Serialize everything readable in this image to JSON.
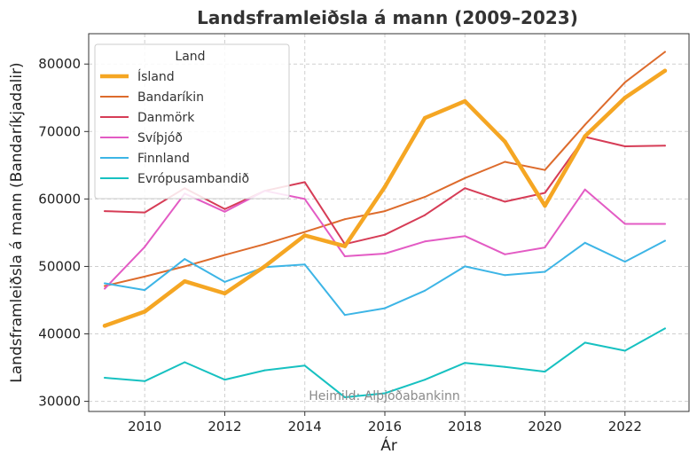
{
  "chart_data": {
    "type": "line",
    "title": "Landsframleiðsla á mann (2009–2023)",
    "xlabel": "Ár",
    "ylabel": "Landsframleiðsla á mann (Bandaríkjadalir)",
    "xlim": [
      2008.6,
      2023.6
    ],
    "ylim": [
      28500,
      84500
    ],
    "xticks": [
      2010,
      2012,
      2014,
      2016,
      2018,
      2020,
      2022
    ],
    "yticks": [
      30000,
      40000,
      50000,
      60000,
      70000,
      80000
    ],
    "grid": true,
    "legend_title": "Land",
    "legend_position": "upper-left",
    "source_note": "Heimild: Alþjóðabankinn",
    "x": [
      2009,
      2010,
      2011,
      2012,
      2013,
      2014,
      2015,
      2016,
      2017,
      2018,
      2019,
      2020,
      2021,
      2022,
      2023
    ],
    "series": [
      {
        "name": "Ísland",
        "color": "#f5a623",
        "width": 4.5,
        "values": [
          41200,
          43300,
          47800,
          46000,
          50000,
          54600,
          53000,
          61800,
          72000,
          74500,
          68500,
          59000,
          69300,
          75000,
          79000
        ]
      },
      {
        "name": "Bandaríkin",
        "color": "#dd6b2c",
        "width": 2,
        "values": [
          47100,
          48500,
          50000,
          51700,
          53300,
          55100,
          57000,
          58200,
          60300,
          63100,
          65500,
          64300,
          71000,
          77300,
          81800
        ]
      },
      {
        "name": "Danmörk",
        "color": "#d63c56",
        "width": 2,
        "values": [
          58200,
          58000,
          61600,
          58500,
          61200,
          62500,
          53300,
          54700,
          57600,
          61600,
          59600,
          60900,
          69200,
          67800,
          67900
        ]
      },
      {
        "name": "Svíþjóð",
        "color": "#e35bc4",
        "width": 2,
        "values": [
          46700,
          52900,
          60800,
          58100,
          61200,
          60000,
          51500,
          51900,
          53700,
          54500,
          51800,
          52800,
          61400,
          56300,
          56300
        ]
      },
      {
        "name": "Finnland",
        "color": "#3db5e6",
        "width": 2,
        "values": [
          47500,
          46500,
          51100,
          47700,
          49900,
          50300,
          42800,
          43800,
          46400,
          50000,
          48700,
          49200,
          53500,
          50700,
          53800
        ]
      },
      {
        "name": "Evrópusambandið",
        "color": "#17c1c1",
        "width": 2,
        "values": [
          33500,
          33000,
          35800,
          33200,
          34600,
          35300,
          30600,
          31200,
          33200,
          35700,
          35100,
          34400,
          38700,
          37500,
          40800
        ]
      }
    ]
  }
}
